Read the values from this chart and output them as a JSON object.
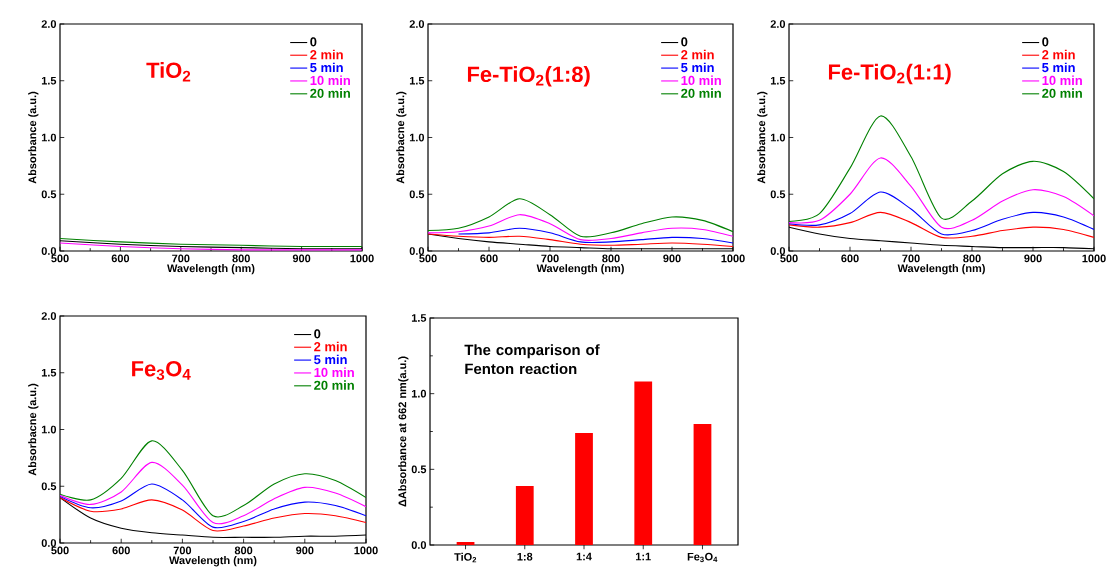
{
  "chart_data": [
    {
      "type": "line",
      "title": "TiO$_{2}$",
      "xlabel": "Wavelength (nm)",
      "ylabel": "Absorbance (a.u.)",
      "x": [
        500,
        600,
        700,
        800,
        900,
        1000
      ],
      "xlim": [
        500,
        1000
      ],
      "ylim": [
        0,
        2
      ],
      "xticks": [
        500,
        600,
        700,
        800,
        900,
        1000
      ],
      "yticks": [
        {
          "value": 0,
          "label": "0.0"
        },
        {
          "value": 0.5,
          "label": "0.5"
        },
        {
          "value": 1,
          "label": "1.0"
        },
        {
          "value": 1.5,
          "label": "1.5"
        },
        {
          "value": 2,
          "label": "2.0"
        }
      ],
      "legend": "top right",
      "series": [
        {
          "name": "0",
          "color": "#000000",
          "values": [
            0.09,
            0.06,
            0.04,
            0.03,
            0.02,
            0.02
          ]
        },
        {
          "name": "2 min",
          "color": "#ff0000",
          "values": [
            null,
            null,
            null,
            null,
            null,
            null
          ]
        },
        {
          "name": "5 min",
          "color": "#0000ff",
          "values": [
            null,
            null,
            null,
            null,
            null,
            null
          ]
        },
        {
          "name": "10 min",
          "color": "#ff00ff",
          "values": [
            0.07,
            0.04,
            0.02,
            0.01,
            0.01,
            0.01
          ]
        },
        {
          "name": "20 min",
          "color": "#008000",
          "values": [
            0.11,
            0.08,
            0.06,
            0.05,
            0.04,
            0.04
          ]
        }
      ]
    },
    {
      "type": "line",
      "title": "Fe-TiO$_{2}$(1:8)",
      "xlabel": "Wavelength (nm)",
      "ylabel": "Absorbacne (a.u.)",
      "x": [
        500,
        550,
        600,
        650,
        700,
        750,
        800,
        850,
        900,
        950,
        1000
      ],
      "xlim": [
        500,
        1000
      ],
      "ylim": [
        0,
        2
      ],
      "xticks": [
        500,
        600,
        700,
        800,
        900,
        1000
      ],
      "yticks": [
        {
          "value": 0,
          "label": "0.0"
        },
        {
          "value": 0.5,
          "label": "0.5"
        },
        {
          "value": 1,
          "label": "1.0"
        },
        {
          "value": 1.5,
          "label": "1.5"
        },
        {
          "value": 2,
          "label": "2.0"
        }
      ],
      "legend": "top right",
      "series": [
        {
          "name": "0",
          "color": "#000000",
          "values": [
            0.15,
            0.11,
            0.08,
            0.06,
            0.04,
            0.03,
            0.02,
            0.02,
            0.02,
            0.02,
            0.02
          ]
        },
        {
          "name": "2 min",
          "color": "#ff0000",
          "values": [
            0.15,
            0.13,
            0.12,
            0.13,
            0.1,
            0.06,
            0.05,
            0.06,
            0.07,
            0.06,
            0.04
          ]
        },
        {
          "name": "5 min",
          "color": "#0000ff",
          "values": [
            null,
            0.15,
            0.16,
            0.2,
            0.16,
            0.08,
            0.08,
            0.1,
            0.12,
            0.11,
            0.07
          ]
        },
        {
          "name": "10 min",
          "color": "#ff00ff",
          "values": [
            0.16,
            0.17,
            0.22,
            0.32,
            0.24,
            0.1,
            0.11,
            0.16,
            0.2,
            0.19,
            0.13
          ]
        },
        {
          "name": "20 min",
          "color": "#008000",
          "values": [
            0.18,
            0.2,
            0.3,
            0.46,
            0.32,
            0.13,
            0.16,
            0.24,
            0.3,
            0.27,
            0.17
          ]
        }
      ]
    },
    {
      "type": "line",
      "title": "Fe-TiO$_{2}$(1:1)",
      "xlabel": "Wavelength (nm)",
      "ylabel": "Absorbance (a.u.)",
      "x": [
        500,
        550,
        600,
        650,
        700,
        750,
        800,
        850,
        900,
        950,
        1000
      ],
      "xlim": [
        500,
        1000
      ],
      "ylim": [
        0,
        2
      ],
      "xticks": [
        500,
        600,
        700,
        800,
        900,
        1000
      ],
      "yticks": [
        {
          "value": 0,
          "label": "0.0"
        },
        {
          "value": 0.5,
          "label": "0.5"
        },
        {
          "value": 1,
          "label": "1.0"
        },
        {
          "value": 1.5,
          "label": "1.5"
        },
        {
          "value": 2,
          "label": "2.0"
        }
      ],
      "legend": "top right",
      "series": [
        {
          "name": "0",
          "color": "#000000",
          "values": [
            0.21,
            0.15,
            0.11,
            0.09,
            0.07,
            0.05,
            0.04,
            0.03,
            0.03,
            0.03,
            0.02
          ]
        },
        {
          "name": "2 min",
          "color": "#ff0000",
          "values": [
            0.23,
            0.21,
            0.25,
            0.34,
            0.25,
            0.12,
            0.13,
            0.18,
            0.21,
            0.19,
            0.12
          ]
        },
        {
          "name": "5 min",
          "color": "#0000ff",
          "values": [
            0.24,
            0.23,
            0.33,
            0.52,
            0.37,
            0.15,
            0.18,
            0.28,
            0.34,
            0.3,
            0.19
          ]
        },
        {
          "name": "10 min",
          "color": "#ff00ff",
          "values": [
            0.25,
            0.27,
            0.5,
            0.82,
            0.57,
            0.21,
            0.27,
            0.44,
            0.54,
            0.48,
            0.31
          ]
        },
        {
          "name": "20 min",
          "color": "#008000",
          "values": [
            0.26,
            0.33,
            0.73,
            1.19,
            0.83,
            0.29,
            0.44,
            0.68,
            0.79,
            0.7,
            0.46
          ]
        }
      ]
    },
    {
      "type": "line",
      "title": "Fe$_{3}$O$_{4}$",
      "xlabel": "Wavelength (nm)",
      "ylabel": "Absorbacne (a.u.)",
      "x": [
        500,
        550,
        600,
        650,
        700,
        750,
        800,
        850,
        900,
        950,
        1000
      ],
      "xlim": [
        500,
        1000
      ],
      "ylim": [
        0,
        2
      ],
      "xticks": [
        500,
        600,
        700,
        800,
        900,
        1000
      ],
      "yticks": [
        {
          "value": 0,
          "label": "0.0"
        },
        {
          "value": 0.5,
          "label": "0.5"
        },
        {
          "value": 1,
          "label": "1.0"
        },
        {
          "value": 1.5,
          "label": "1.5"
        },
        {
          "value": 2,
          "label": "2.0"
        }
      ],
      "legend": "top right",
      "series": [
        {
          "name": "0",
          "color": "#000000",
          "values": [
            0.4,
            0.22,
            0.13,
            0.09,
            0.07,
            0.05,
            0.05,
            0.05,
            0.06,
            0.06,
            0.07
          ]
        },
        {
          "name": "2 min",
          "color": "#ff0000",
          "values": [
            0.4,
            0.28,
            0.3,
            0.38,
            0.29,
            0.11,
            0.15,
            0.22,
            0.26,
            0.24,
            0.18
          ]
        },
        {
          "name": "5 min",
          "color": "#0000ff",
          "values": [
            0.41,
            0.31,
            0.37,
            0.52,
            0.38,
            0.14,
            0.19,
            0.3,
            0.36,
            0.33,
            0.24
          ]
        },
        {
          "name": "10 min",
          "color": "#ff00ff",
          "values": [
            0.42,
            0.34,
            0.45,
            0.71,
            0.51,
            0.18,
            0.24,
            0.39,
            0.49,
            0.44,
            0.32
          ]
        },
        {
          "name": "20 min",
          "color": "#008000",
          "values": [
            0.43,
            0.38,
            0.57,
            0.9,
            0.64,
            0.24,
            0.33,
            0.52,
            0.61,
            0.55,
            0.4
          ]
        }
      ]
    },
    {
      "type": "bar",
      "ylabel": "ΔAbsorbance at 662 nm(a.u.)",
      "annotations": [
        "The comparison of Fenton reaction"
      ],
      "categories": [
        "TiO$_{2}$",
        "1:8",
        "1:4",
        "1:1",
        "Fe$_{3}$O$_{4}$"
      ],
      "values": [
        0.02,
        0.39,
        0.74,
        1.08,
        0.8
      ],
      "color": "#ff0000",
      "ylim": [
        0,
        1.5
      ],
      "yticks": [
        {
          "value": 0,
          "label": "0.0"
        },
        {
          "value": 0.5,
          "label": "0.5"
        },
        {
          "value": 1,
          "label": "1.0"
        },
        {
          "value": 1.5,
          "label": "1.5"
        }
      ]
    }
  ]
}
